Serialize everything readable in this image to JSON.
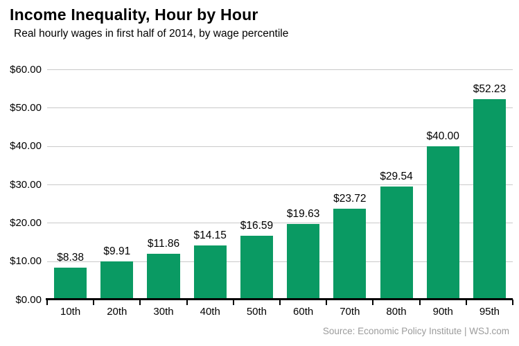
{
  "header": {
    "title": "Income Inequality, Hour by Hour",
    "subtitle": "Real hourly wages in first half of 2014, by wage percentile"
  },
  "footer": {
    "source": "Source: Economic Policy Institute  |  WSJ.com"
  },
  "colors": {
    "bar": "#0a9a63",
    "gridline": "#c9c9c9",
    "axis": "#000000",
    "source_text": "#9b9b9b"
  },
  "chart_data": {
    "type": "bar",
    "title": "Income Inequality, Hour by Hour",
    "subtitle": "Real hourly wages in first half of 2014, by wage percentile",
    "categories": [
      "10th",
      "20th",
      "30th",
      "40th",
      "50th",
      "60th",
      "70th",
      "80th",
      "90th",
      "95th"
    ],
    "values": [
      8.38,
      9.91,
      11.86,
      14.15,
      16.59,
      19.63,
      23.72,
      29.54,
      40.0,
      52.23
    ],
    "bar_labels": [
      "$8.38",
      "$9.91",
      "$11.86",
      "$14.15",
      "$16.59",
      "$19.63",
      "$23.72",
      "$29.54",
      "$40.00",
      "$52.23"
    ],
    "xlabel": "",
    "ylabel": "",
    "ylim": [
      0,
      60
    ],
    "yticks": [
      {
        "label": "$0.00",
        "value": 0
      },
      {
        "label": "$10.00",
        "value": 10
      },
      {
        "label": "$20.00",
        "value": 20
      },
      {
        "label": "$30.00",
        "value": 30
      },
      {
        "label": "$40.00",
        "value": 40
      },
      {
        "label": "$50.00",
        "value": 50
      },
      {
        "label": "$60.00",
        "value": 60
      }
    ],
    "grid": "horizontal",
    "legend": "none",
    "source": "Source: Economic Policy Institute  |  WSJ.com"
  }
}
